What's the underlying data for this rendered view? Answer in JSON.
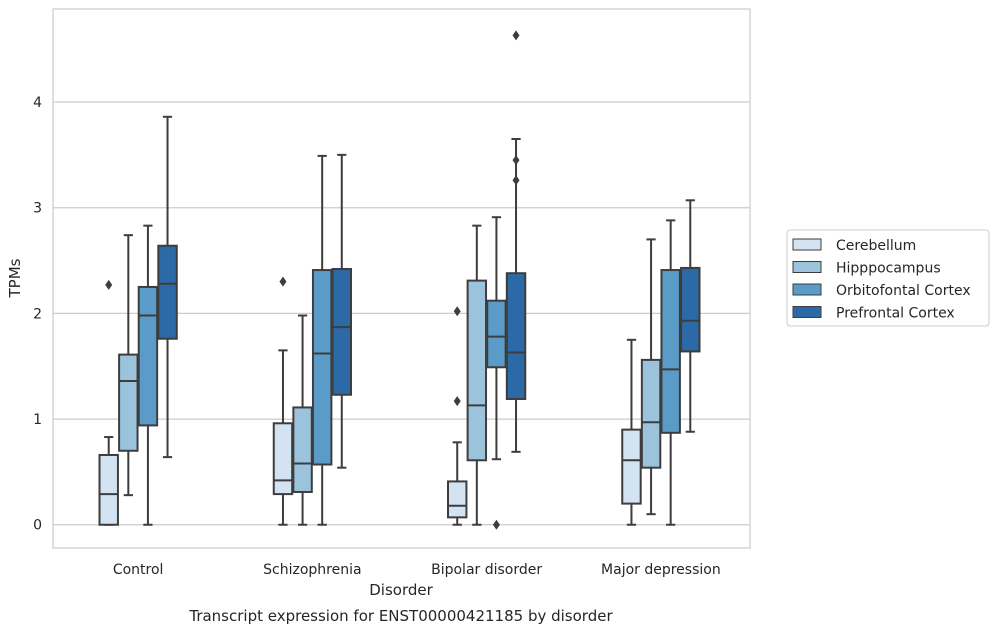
{
  "chart_data": {
    "type": "box",
    "title": "Transcript expression for ENST00000421185 by disorder",
    "xlabel": "Disorder",
    "ylabel": "TPMs",
    "ylim": [
      -0.22,
      4.88
    ],
    "yticks": [
      0,
      1,
      2,
      3,
      4
    ],
    "grid": true,
    "legend_position": "right",
    "categories": [
      "Control",
      "Schizophrenia",
      "Bipolar disorder",
      "Major depression"
    ],
    "series": [
      {
        "name": "Cerebellum",
        "color": "#d4e3f2",
        "boxes": [
          {
            "whislo": 0.0,
            "q1": 0.0,
            "med": 0.29,
            "q3": 0.66,
            "whishi": 0.83,
            "fliers": [
              2.27
            ]
          },
          {
            "whislo": 0.0,
            "q1": 0.29,
            "med": 0.42,
            "q3": 0.96,
            "whishi": 1.65,
            "fliers": [
              2.3
            ]
          },
          {
            "whislo": 0.0,
            "q1": 0.07,
            "med": 0.18,
            "q3": 0.41,
            "whishi": 0.78,
            "fliers": [
              1.17,
              2.02
            ]
          },
          {
            "whislo": 0.0,
            "q1": 0.2,
            "med": 0.61,
            "q3": 0.9,
            "whishi": 1.75,
            "fliers": []
          }
        ]
      },
      {
        "name": "Hipppocampus",
        "color": "#9cc3dc",
        "boxes": [
          {
            "whislo": 0.28,
            "q1": 0.7,
            "med": 1.36,
            "q3": 1.61,
            "whishi": 2.74,
            "fliers": []
          },
          {
            "whislo": 0.0,
            "q1": 0.31,
            "med": 0.58,
            "q3": 1.11,
            "whishi": 1.98,
            "fliers": []
          },
          {
            "whislo": 0.0,
            "q1": 0.61,
            "med": 1.13,
            "q3": 2.31,
            "whishi": 2.83,
            "fliers": []
          },
          {
            "whislo": 0.1,
            "q1": 0.54,
            "med": 0.97,
            "q3": 1.56,
            "whishi": 2.7,
            "fliers": []
          }
        ]
      },
      {
        "name": "Orbitofontal Cortex",
        "color": "#5b9bc7",
        "boxes": [
          {
            "whislo": 0.0,
            "q1": 0.94,
            "med": 1.98,
            "q3": 2.25,
            "whishi": 2.83,
            "fliers": []
          },
          {
            "whislo": 0.0,
            "q1": 0.57,
            "med": 1.62,
            "q3": 2.41,
            "whishi": 3.49,
            "fliers": []
          },
          {
            "whislo": 0.62,
            "q1": 1.49,
            "med": 1.78,
            "q3": 2.12,
            "whishi": 2.91,
            "fliers": [
              0.0
            ]
          },
          {
            "whislo": 0.0,
            "q1": 0.87,
            "med": 1.47,
            "q3": 2.41,
            "whishi": 2.88,
            "fliers": []
          }
        ]
      },
      {
        "name": "Prefrontal Cortex",
        "color": "#2c69a7",
        "boxes": [
          {
            "whislo": 0.64,
            "q1": 1.76,
            "med": 2.28,
            "q3": 2.64,
            "whishi": 3.86,
            "fliers": []
          },
          {
            "whislo": 0.54,
            "q1": 1.23,
            "med": 1.87,
            "q3": 2.42,
            "whishi": 3.5,
            "fliers": []
          },
          {
            "whislo": 0.69,
            "q1": 1.19,
            "med": 1.63,
            "q3": 2.38,
            "whishi": 3.65,
            "fliers": [
              3.26,
              3.45,
              4.63
            ]
          },
          {
            "whislo": 0.88,
            "q1": 1.64,
            "med": 1.93,
            "q3": 2.43,
            "whishi": 3.07,
            "fliers": []
          }
        ]
      }
    ]
  }
}
